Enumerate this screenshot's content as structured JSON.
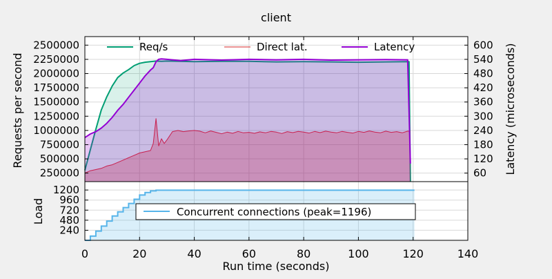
{
  "chart_data": [
    {
      "type": "area",
      "title": "client",
      "xlabel": "Run time (seconds)",
      "ylabel": "Requests per second",
      "y2label": "Latency (microseconds)",
      "xlim": [
        0,
        140
      ],
      "ylim": [
        100000,
        2650000
      ],
      "y2lim": [
        24,
        636
      ],
      "x_ticks": [
        "0",
        "20",
        "40",
        "60",
        "80",
        "100",
        "120",
        "140"
      ],
      "y_ticks": [
        "250000",
        "500000",
        "750000",
        "1000000",
        "1250000",
        "1500000",
        "1750000",
        "2000000",
        "2250000",
        "2500000"
      ],
      "y2_ticks": [
        "60",
        "120",
        "180",
        "240",
        "300",
        "360",
        "420",
        "480",
        "540",
        "600"
      ],
      "grid": true,
      "legend_position": "top",
      "series": [
        {
          "name": "Req/s",
          "axis": "left",
          "color": "#009e73",
          "x": [
            0,
            2,
            4,
            6,
            8,
            10,
            12,
            14,
            16,
            18,
            20,
            22,
            24,
            26,
            28,
            30,
            40,
            50,
            60,
            70,
            80,
            90,
            100,
            110,
            118.5,
            119
          ],
          "values": [
            300000,
            660000,
            1020000,
            1360000,
            1590000,
            1780000,
            1930000,
            2010000,
            2070000,
            2140000,
            2180000,
            2200000,
            2210000,
            2220000,
            2215000,
            2220000,
            2210000,
            2215000,
            2215000,
            2205000,
            2210000,
            2205000,
            2200000,
            2205000,
            2210000,
            100000
          ]
        },
        {
          "name": "Direct lat.",
          "axis": "right",
          "color": "#d62728",
          "x": [
            0,
            2,
            4,
            6,
            8,
            10,
            12,
            14,
            16,
            18,
            20,
            22,
            24,
            25,
            26,
            27,
            28,
            29,
            30,
            32,
            34,
            36,
            38,
            40,
            42,
            44,
            46,
            48,
            50,
            52,
            54,
            56,
            58,
            60,
            62,
            64,
            66,
            68,
            70,
            72,
            74,
            76,
            78,
            80,
            82,
            84,
            86,
            88,
            90,
            92,
            94,
            96,
            98,
            100,
            102,
            104,
            106,
            108,
            110,
            112,
            114,
            116,
            118,
            119
          ],
          "values": [
            60,
            70,
            75,
            80,
            90,
            95,
            105,
            115,
            125,
            135,
            145,
            150,
            155,
            185,
            290,
            175,
            205,
            185,
            200,
            235,
            240,
            235,
            238,
            240,
            237,
            230,
            238,
            232,
            226,
            233,
            228,
            236,
            230,
            232,
            228,
            234,
            230,
            236,
            233,
            227,
            235,
            231,
            236,
            233,
            229,
            236,
            231,
            237,
            233,
            230,
            236,
            232,
            229,
            236,
            232,
            238,
            233,
            230,
            237,
            232,
            235,
            230,
            237,
            236
          ]
        },
        {
          "name": "Latency",
          "axis": "right",
          "color": "#9400d3",
          "x": [
            0,
            2,
            4,
            6,
            8,
            10,
            12,
            14,
            16,
            18,
            20,
            22,
            24,
            25,
            26,
            27,
            28,
            30,
            35,
            40,
            50,
            60,
            70,
            80,
            90,
            100,
            110,
            118,
            119
          ],
          "values": [
            210,
            225,
            235,
            250,
            270,
            295,
            325,
            350,
            380,
            410,
            440,
            470,
            495,
            505,
            530,
            540,
            542,
            540,
            535,
            540,
            537,
            540,
            538,
            540,
            537,
            538,
            539,
            538,
            100
          ]
        }
      ]
    },
    {
      "type": "area",
      "xlabel": "Run time (seconds)",
      "ylabel": "Load",
      "xlim": [
        0,
        140
      ],
      "ylim": [
        0,
        1400
      ],
      "y_ticks": [
        "240",
        "480",
        "720",
        "960",
        "1200"
      ],
      "grid": true,
      "legend_position": "center",
      "series": [
        {
          "name": "Concurrent connections (peak=1196)",
          "color": "#56b4e9",
          "x": [
            0,
            2,
            2,
            4,
            4,
            6,
            6,
            8,
            8,
            10,
            10,
            12,
            12,
            14,
            14,
            16,
            16,
            18,
            18,
            20,
            20,
            22,
            22,
            24,
            24,
            26,
            26,
            120.5
          ],
          "values": [
            0,
            0,
            100,
            100,
            220,
            220,
            340,
            340,
            460,
            460,
            580,
            580,
            680,
            680,
            780,
            780,
            880,
            880,
            980,
            980,
            1080,
            1080,
            1140,
            1140,
            1180,
            1180,
            1196,
            1196
          ]
        }
      ]
    }
  ]
}
